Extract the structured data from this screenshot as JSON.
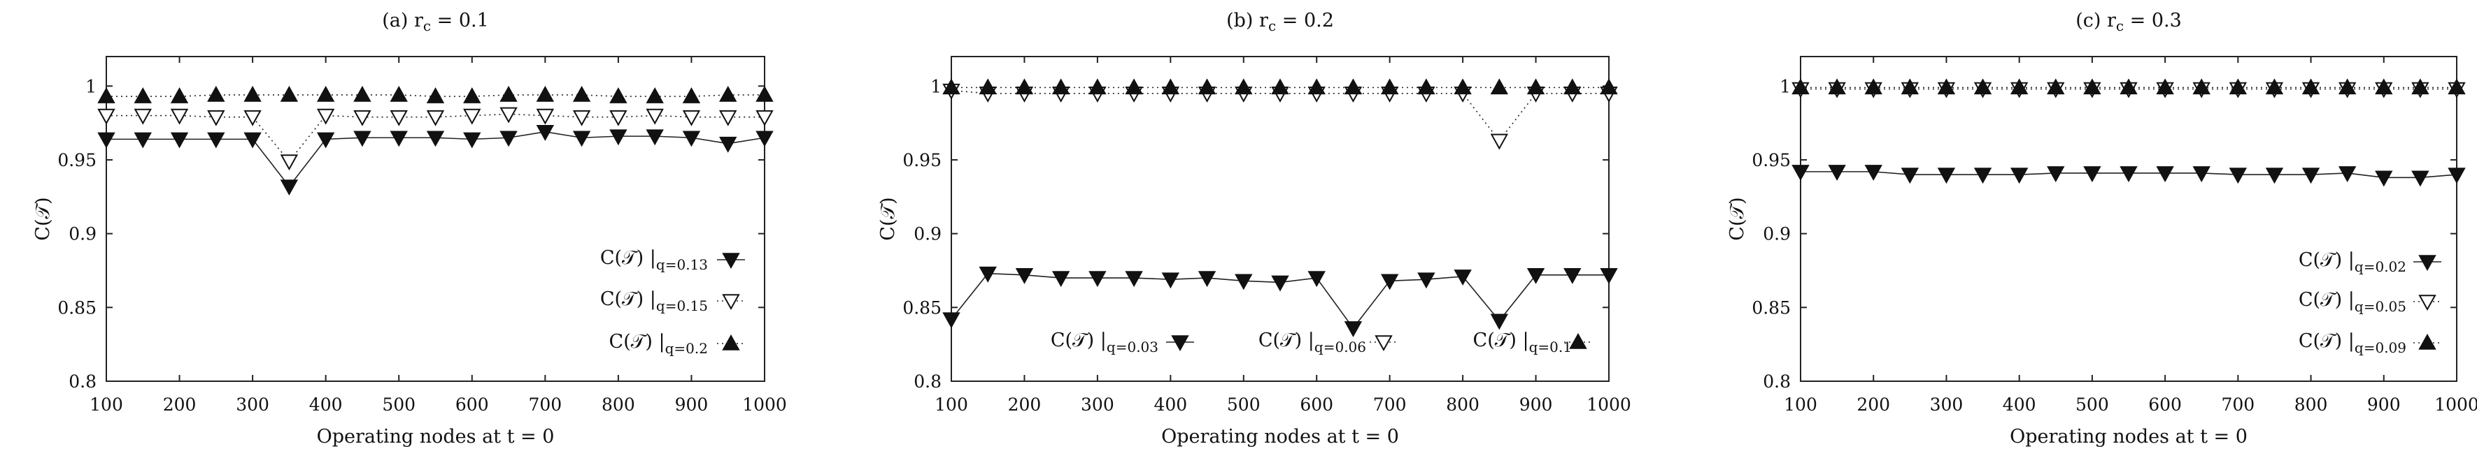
{
  "x_ticks": [
    "100",
    "200",
    "300",
    "400",
    "500",
    "600",
    "700",
    "800",
    "900",
    "1000"
  ],
  "y_ticks": [
    "0.8",
    "0.85",
    "0.9",
    "0.95",
    "1"
  ],
  "chart_data": [
    {
      "type": "line",
      "title": "(a) r_c = 0.1",
      "xlabel": "Operating nodes at t = 0",
      "ylabel": "C(𝒯)",
      "xlim": [
        100,
        1000
      ],
      "ylim": [
        0.8,
        1.02
      ],
      "x": [
        100,
        150,
        200,
        250,
        300,
        350,
        400,
        450,
        500,
        550,
        600,
        650,
        700,
        750,
        800,
        850,
        900,
        950,
        1000
      ],
      "legend_position": "right, vertically stacked",
      "series": [
        {
          "name": "C(𝒯)|q=0.13",
          "marker": "filled-down-triangle",
          "line": "solid",
          "values": [
            0.964,
            0.964,
            0.964,
            0.964,
            0.964,
            0.932,
            0.964,
            0.965,
            0.965,
            0.965,
            0.964,
            0.965,
            0.969,
            0.965,
            0.966,
            0.966,
            0.965,
            0.961,
            0.965
          ]
        },
        {
          "name": "C(𝒯)|q=0.15",
          "marker": "open-down-triangle",
          "line": "dotted",
          "values": [
            0.98,
            0.98,
            0.98,
            0.979,
            0.979,
            0.949,
            0.98,
            0.979,
            0.979,
            0.979,
            0.98,
            0.981,
            0.98,
            0.979,
            0.979,
            0.98,
            0.979,
            0.979,
            0.979
          ]
        },
        {
          "name": "C(𝒯)|q=0.2",
          "marker": "filled-up-triangle",
          "line": "dotted",
          "values": [
            0.993,
            0.993,
            0.993,
            0.994,
            0.994,
            0.994,
            0.994,
            0.994,
            0.994,
            0.993,
            0.993,
            0.994,
            0.994,
            0.994,
            0.993,
            0.993,
            0.993,
            0.994,
            0.994
          ]
        }
      ]
    },
    {
      "type": "line",
      "title": "(b) r_c = 0.2",
      "xlabel": "Operating nodes at t = 0",
      "ylabel": "C(𝒯)",
      "xlim": [
        100,
        1000
      ],
      "ylim": [
        0.8,
        1.02
      ],
      "x": [
        100,
        150,
        200,
        250,
        300,
        350,
        400,
        450,
        500,
        550,
        600,
        650,
        700,
        750,
        800,
        850,
        900,
        950,
        1000
      ],
      "legend_position": "bottom, horizontal",
      "series": [
        {
          "name": "C(𝒯)|q=0.03",
          "marker": "filled-down-triangle",
          "line": "solid",
          "values": [
            0.842,
            0.873,
            0.872,
            0.87,
            0.87,
            0.87,
            0.869,
            0.87,
            0.868,
            0.867,
            0.87,
            0.836,
            0.868,
            0.869,
            0.871,
            0.841,
            0.872,
            0.872,
            0.872
          ]
        },
        {
          "name": "C(𝒯)|q=0.06",
          "marker": "open-down-triangle",
          "line": "dotted",
          "values": [
            0.997,
            0.995,
            0.995,
            0.995,
            0.995,
            0.995,
            0.995,
            0.995,
            0.995,
            0.995,
            0.995,
            0.995,
            0.995,
            0.995,
            0.995,
            0.963,
            0.995,
            0.995,
            0.995
          ]
        },
        {
          "name": "C(𝒯)|q=0.1",
          "marker": "filled-up-triangle",
          "line": "dotted",
          "values": [
            0.999,
            0.999,
            0.999,
            0.999,
            0.999,
            0.999,
            0.999,
            0.999,
            0.999,
            0.999,
            0.999,
            0.999,
            0.999,
            0.999,
            0.999,
            0.999,
            0.999,
            0.999,
            0.999
          ]
        }
      ]
    },
    {
      "type": "line",
      "title": "(c) r_c = 0.3",
      "xlabel": "Operating nodes at t = 0",
      "ylabel": "C(𝒯)",
      "xlim": [
        100,
        1000
      ],
      "ylim": [
        0.8,
        1.02
      ],
      "x": [
        100,
        150,
        200,
        250,
        300,
        350,
        400,
        450,
        500,
        550,
        600,
        650,
        700,
        750,
        800,
        850,
        900,
        950,
        1000
      ],
      "legend_position": "right, vertically stacked",
      "series": [
        {
          "name": "C(𝒯)|q=0.02",
          "marker": "filled-down-triangle",
          "line": "solid",
          "values": [
            0.942,
            0.942,
            0.942,
            0.94,
            0.94,
            0.94,
            0.94,
            0.941,
            0.941,
            0.941,
            0.941,
            0.941,
            0.94,
            0.94,
            0.94,
            0.941,
            0.938,
            0.938,
            0.94
          ]
        },
        {
          "name": "C(𝒯)|q=0.05",
          "marker": "open-down-triangle",
          "line": "dotted",
          "values": [
            0.998,
            0.998,
            0.998,
            0.998,
            0.998,
            0.998,
            0.998,
            0.998,
            0.998,
            0.998,
            0.998,
            0.998,
            0.998,
            0.998,
            0.998,
            0.998,
            0.998,
            0.998,
            0.998
          ]
        },
        {
          "name": "C(𝒯)|q=0.09",
          "marker": "filled-up-triangle",
          "line": "dotted",
          "values": [
            0.999,
            0.999,
            0.999,
            0.999,
            0.999,
            0.999,
            0.999,
            0.999,
            0.999,
            0.999,
            0.999,
            0.999,
            0.999,
            0.999,
            0.999,
            0.999,
            0.999,
            0.999,
            0.999
          ]
        }
      ]
    }
  ]
}
